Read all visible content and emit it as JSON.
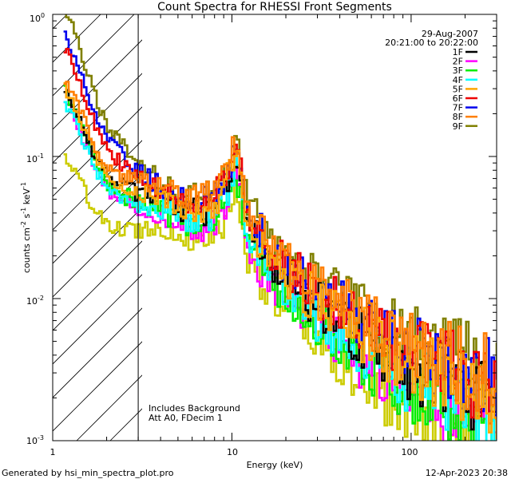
{
  "chart_data": {
    "type": "line",
    "scale": "log-log",
    "title": "Count Spectra for RHESSI Front Segments",
    "xlabel": "Energy (keV)",
    "ylabel": "counts cm^-2 s^-1 keV^-1",
    "xlim": [
      1,
      300
    ],
    "ylim": [
      0.001,
      1
    ],
    "x_ticks": [
      {
        "value": 1,
        "label": "1"
      },
      {
        "value": 10,
        "label": "10"
      },
      {
        "value": 100,
        "label": "100"
      }
    ],
    "y_ticks": [
      {
        "value": 1,
        "label": "10",
        "exp": "0"
      },
      {
        "value": 0.1,
        "label": "10",
        "exp": "-1"
      },
      {
        "value": 0.01,
        "label": "10",
        "exp": "-2"
      },
      {
        "value": 0.001,
        "label": "10",
        "exp": "-3"
      }
    ],
    "date": "29-Aug-2007",
    "time_range": "20:21:00 to 20:22:00",
    "annotations": [
      "Includes Background",
      "Att A0, FDecim 1"
    ],
    "threshold_energy": 3,
    "series": [
      {
        "name": "1F",
        "color": "#000000"
      },
      {
        "name": "2F",
        "color": "#ff00ff"
      },
      {
        "name": "3F",
        "color": "#00ee00"
      },
      {
        "name": "4F",
        "color": "#00ffff"
      },
      {
        "name": "5F",
        "color": "#ffa500"
      },
      {
        "name": "6F",
        "color": "#ee0000"
      },
      {
        "name": "7F",
        "color": "#0000ee"
      },
      {
        "name": "8F",
        "color": "#ff7f00"
      },
      {
        "name": "9F",
        "color": "#808000"
      },
      {
        "name": "yellow",
        "color": "#cccc00"
      }
    ],
    "line_series_note": "Series are drawn from the profile below with per-series offsets and noise; the yellow trace has no legend entry.",
    "profile": [
      [
        1.15,
        0.3
      ],
      [
        1.4,
        0.18
      ],
      [
        1.7,
        0.1
      ],
      [
        2.0,
        0.07
      ],
      [
        2.5,
        0.06
      ],
      [
        3.0,
        0.055
      ],
      [
        4.0,
        0.05
      ],
      [
        5.0,
        0.042
      ],
      [
        6.5,
        0.04
      ],
      [
        8.0,
        0.045
      ],
      [
        9.5,
        0.07
      ],
      [
        10.2,
        0.1
      ],
      [
        11.0,
        0.07
      ],
      [
        12.0,
        0.035
      ],
      [
        14.0,
        0.024
      ],
      [
        17.0,
        0.017
      ],
      [
        20.0,
        0.014
      ],
      [
        25.0,
        0.011
      ],
      [
        30.0,
        0.009
      ],
      [
        40.0,
        0.007
      ],
      [
        50.0,
        0.0055
      ],
      [
        70.0,
        0.0042
      ],
      [
        100.0,
        0.0033
      ],
      [
        150.0,
        0.0027
      ],
      [
        200.0,
        0.0022
      ],
      [
        280.0,
        0.0018
      ]
    ]
  },
  "footer": {
    "generated_by": "Generated by hsi_min_spectra_plot.pro",
    "timestamp": "12-Apr-2023 20:38"
  }
}
